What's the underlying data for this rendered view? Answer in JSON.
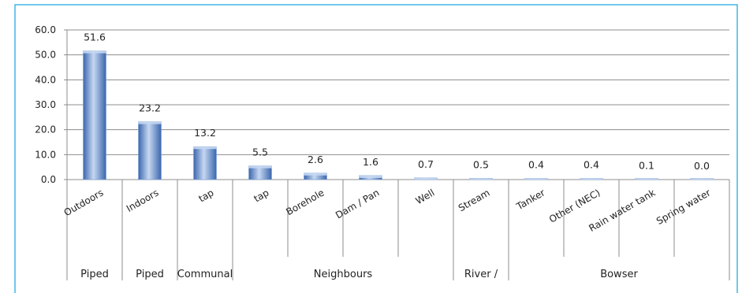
{
  "chart_data": {
    "type": "bar",
    "categories": [
      "Outdoors",
      "Indoors",
      "tap",
      "tap",
      "Borehole",
      "Dam / Pan",
      "Well",
      "Stream",
      "Tanker",
      "Other (NEC)",
      "Rain water tank",
      "Spring water"
    ],
    "values": [
      51.6,
      23.2,
      13.2,
      5.5,
      2.6,
      1.6,
      0.7,
      0.5,
      0.4,
      0.4,
      0.1,
      0.0
    ],
    "data_labels": [
      "51.6",
      "23.2",
      "13.2",
      "5.5",
      "2.6",
      "1.6",
      "0.7",
      "0.5",
      "0.4",
      "0.4",
      "0.1",
      "0.0"
    ],
    "ylim": [
      0,
      60
    ],
    "yticks": [
      "0.0",
      "10.0",
      "20.0",
      "30.0",
      "40.0",
      "50.0",
      "60.0"
    ],
    "category_groups": [
      {
        "label": "Piped",
        "span": [
          0,
          0
        ]
      },
      {
        "label": "Piped",
        "span": [
          1,
          1
        ]
      },
      {
        "label": "Communal",
        "span": [
          2,
          2
        ]
      },
      {
        "label": "Neighbours",
        "span": [
          3,
          6
        ]
      },
      {
        "label": "River /",
        "span": [
          7,
          7
        ]
      },
      {
        "label": "Bowser",
        "span": [
          8,
          11
        ]
      }
    ],
    "grid": true,
    "legend": "none",
    "colors": {
      "bar_light": "#c6d8f2",
      "bar_mid": "#7fa3d8",
      "bar_dark": "#3b66ad",
      "grid": "#8c8c8c",
      "frame": "#41b6e6"
    }
  }
}
